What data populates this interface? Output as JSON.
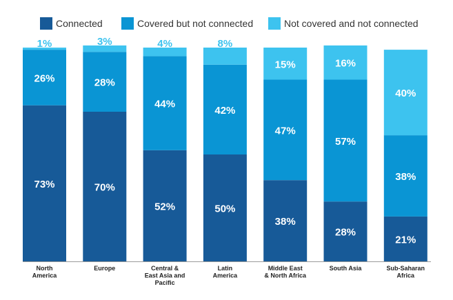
{
  "colors": {
    "connected": "#175a98",
    "covered": "#0a95d4",
    "not_covered": "#3dc3ef",
    "baseline": "#9a9a9a"
  },
  "chart_data": {
    "type": "bar",
    "stacked": true,
    "ylim": [
      0,
      100
    ],
    "grid": false,
    "legend_position": "top",
    "categories": [
      [
        "North",
        "America"
      ],
      [
        "Europe"
      ],
      [
        "Central &",
        "East Asia and",
        "Pacific"
      ],
      [
        "Latin",
        "America"
      ],
      [
        "Middle East",
        "& North Africa"
      ],
      [
        "South Asia"
      ],
      [
        "Sub-Saharan",
        "Africa"
      ]
    ],
    "series": [
      {
        "name": "Connected",
        "color": "#175a98",
        "values": [
          73,
          70,
          52,
          50,
          38,
          28,
          21
        ]
      },
      {
        "name": "Covered but not connected",
        "color": "#0a95d4",
        "values": [
          26,
          28,
          44,
          42,
          47,
          57,
          38
        ]
      },
      {
        "name": "Not covered and not connected",
        "color": "#3dc3ef",
        "values": [
          1,
          3,
          4,
          8,
          15,
          16,
          40
        ]
      }
    ],
    "value_labels": [
      [
        "73%",
        "70%",
        "52%",
        "50%",
        "38%",
        "28%",
        "21%"
      ],
      [
        "26%",
        "28%",
        "44%",
        "42%",
        "47%",
        "57%",
        "38%"
      ],
      [
        "1%",
        "3%",
        "4%",
        "8%",
        "15%",
        "16%",
        "40%"
      ]
    ]
  }
}
